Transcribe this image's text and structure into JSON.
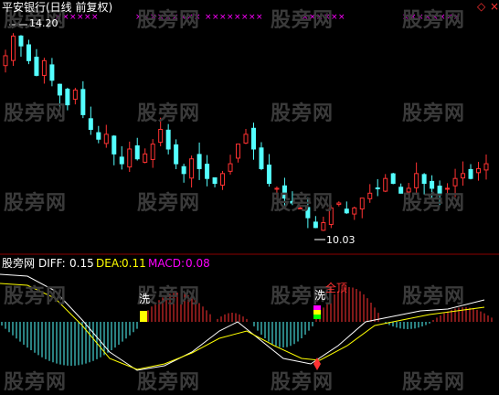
{
  "header": {
    "title": "平安银行(日线 前复权)"
  },
  "watermark": {
    "text": "股旁网"
  },
  "price": {
    "high_label": "14.20",
    "low_label": "10.03"
  },
  "indicator": {
    "site": "股旁网",
    "diff_label": "DIFF:",
    "diff_value": "0.15",
    "dea_label": "DEA:",
    "dea_value": "0.11",
    "macd_label": "MACD:",
    "macd_value": "0.08"
  },
  "markers": {
    "wash_1": "洗",
    "wash_2": "洗",
    "all_top": "全顶"
  },
  "colors": {
    "up": "#ff3232",
    "down": "#54ffff",
    "diff_line": "#ffffff",
    "dea_line": "#ffff00",
    "macd_text": "#ff00ff",
    "x_marker": "#ff00ff"
  },
  "chart_data": [
    {
      "type": "candlestick",
      "title": "平安银行(日线 前复权)",
      "annotations": [
        {
          "label": "14.20",
          "type": "high"
        },
        {
          "label": "10.03",
          "type": "low"
        }
      ],
      "approx_close": [
        13.6,
        14.0,
        13.8,
        13.5,
        13.2,
        13.5,
        13.1,
        12.8,
        12.6,
        12.9,
        12.4,
        12.1,
        11.9,
        12.0,
        11.6,
        11.4,
        11.7,
        11.5,
        11.6,
        11.8,
        12.1,
        11.7,
        11.4,
        11.2,
        11.5,
        11.3,
        11.1,
        11.0,
        11.2,
        11.4,
        11.8,
        12.0,
        11.7,
        11.3,
        11.0,
        10.9,
        10.7,
        10.6,
        10.5,
        10.3,
        10.1,
        10.2,
        10.5,
        10.6,
        10.4,
        10.5,
        10.7,
        10.8,
        10.9,
        11.1,
        11.0,
        10.8,
        10.9,
        11.2,
        11.0,
        10.9,
        10.8,
        10.9,
        11.1,
        11.2,
        11.1,
        11.3,
        11.4
      ]
    },
    {
      "type": "bar",
      "title": "MACD",
      "series": [
        {
          "name": "DIFF",
          "value": 0.15
        },
        {
          "name": "DEA",
          "value": 0.11
        },
        {
          "name": "MACD",
          "value": 0.08
        }
      ]
    }
  ]
}
